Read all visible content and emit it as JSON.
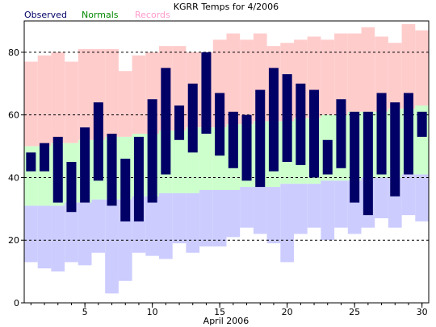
{
  "chart_data": {
    "type": "bar",
    "title": "KGRR Temps for 4/2006",
    "xlabel": "April 2006",
    "ylabel": "",
    "xlim": [
      0.5,
      30.5
    ],
    "ylim": [
      0,
      90
    ],
    "yticks": [
      0,
      20,
      40,
      60,
      80
    ],
    "xticks": [
      5,
      10,
      15,
      20,
      25,
      30
    ],
    "grid": "dashed horizontal at 20, 40, 60, 80",
    "legend": "top-left, above plot",
    "days": [
      1,
      2,
      3,
      4,
      5,
      6,
      7,
      8,
      9,
      10,
      11,
      12,
      13,
      14,
      15,
      16,
      17,
      18,
      19,
      20,
      21,
      22,
      23,
      24,
      25,
      26,
      27,
      28,
      29,
      30
    ],
    "series": [
      {
        "name": "Records",
        "color": "#ffcccc",
        "low_color": "#ccccff",
        "high": [
          77,
          79,
          80,
          77,
          81,
          81,
          81,
          74,
          79,
          80,
          82,
          82,
          80,
          80,
          84,
          86,
          84,
          86,
          82,
          83,
          84,
          85,
          84,
          86,
          86,
          88,
          85,
          83,
          89,
          87
        ],
        "low": [
          13,
          11,
          10,
          13,
          12,
          16,
          3,
          7,
          16,
          15,
          14,
          19,
          16,
          18,
          18,
          21,
          24,
          22,
          19,
          13,
          22,
          24,
          20,
          24,
          22,
          24,
          27,
          24,
          28,
          26
        ]
      },
      {
        "name": "Normals",
        "color": "#ccffcc",
        "high": [
          50,
          50,
          51,
          51,
          52,
          52,
          53,
          53,
          54,
          54,
          55,
          55,
          56,
          56,
          56,
          57,
          57,
          58,
          58,
          58,
          59,
          59,
          60,
          60,
          61,
          61,
          61,
          62,
          62,
          63
        ],
        "low": [
          31,
          31,
          31,
          32,
          32,
          33,
          33,
          33,
          34,
          34,
          35,
          35,
          35,
          36,
          36,
          36,
          37,
          37,
          37,
          38,
          38,
          38,
          39,
          39,
          39,
          40,
          40,
          40,
          41,
          41
        ]
      },
      {
        "name": "Observed",
        "color": "#000066",
        "high": [
          48,
          51,
          53,
          45,
          56,
          64,
          54,
          46,
          53,
          65,
          75,
          63,
          70,
          80,
          67,
          61,
          60,
          68,
          75,
          73,
          70,
          68,
          52,
          65,
          61,
          61,
          67,
          64,
          67,
          61
        ],
        "low": [
          42,
          42,
          32,
          29,
          32,
          39,
          31,
          26,
          26,
          32,
          41,
          52,
          48,
          54,
          47,
          43,
          39,
          37,
          42,
          45,
          44,
          40,
          41,
          43,
          32,
          28,
          41,
          34,
          41,
          53
        ]
      }
    ]
  }
}
